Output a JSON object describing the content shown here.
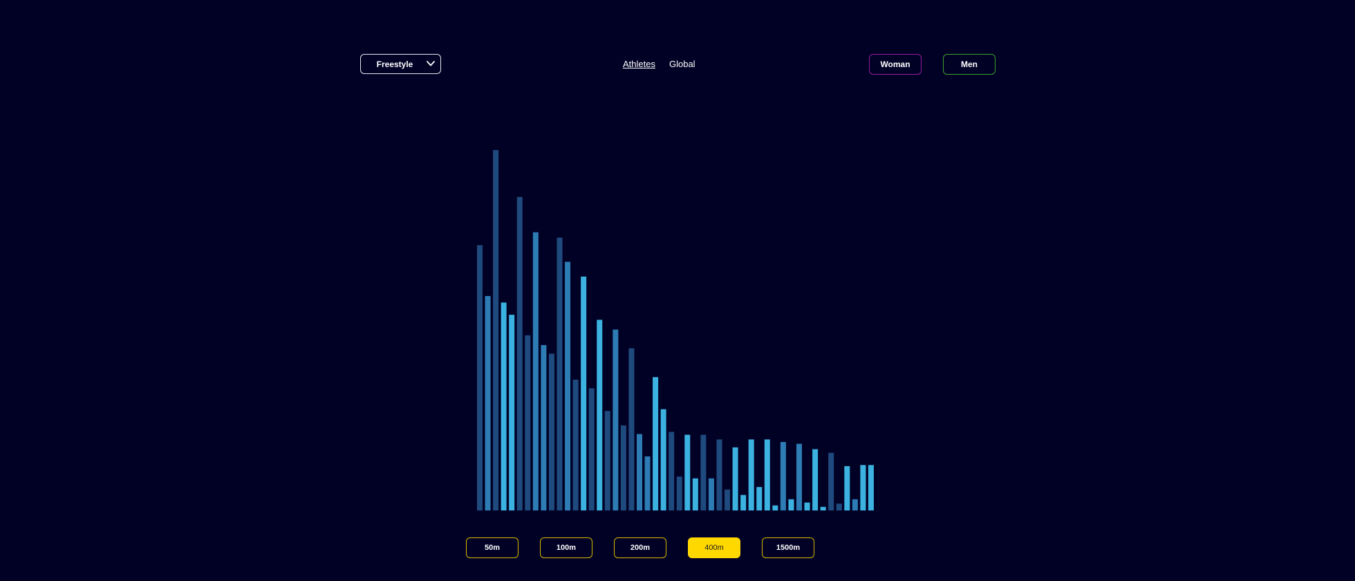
{
  "style_select": {
    "value": "Freestyle"
  },
  "view_tabs": [
    {
      "label": "Athletes",
      "active": true
    },
    {
      "label": "Global",
      "active": false
    }
  ],
  "gender_buttons": [
    {
      "label": "Woman",
      "color": "#9a1aa0"
    },
    {
      "label": "Men",
      "color": "#3fa02a"
    }
  ],
  "distances": [
    {
      "label": "50m",
      "selected": false
    },
    {
      "label": "100m",
      "selected": false
    },
    {
      "label": "200m",
      "selected": false
    },
    {
      "label": "400m",
      "selected": true
    },
    {
      "label": "1500m",
      "selected": false
    }
  ],
  "colors": {
    "background": "#010126",
    "selected_accent": "#ffd800",
    "bar_dark": "#1f4a7e",
    "bar_mid": "#2d7cb4",
    "bar_light": "#3bb2e0"
  },
  "chart_data": {
    "type": "bar",
    "title": "",
    "xlabel": "",
    "ylabel": "",
    "ylim": [
      0,
      100
    ],
    "shade_levels": [
      "dark",
      "mid",
      "light"
    ],
    "values": [
      73.6,
      59.5,
      100,
      57.7,
      54.3,
      87.0,
      48.6,
      77.2,
      45.9,
      43.5,
      75.7,
      69.0,
      36.3,
      64.9,
      33.9,
      52.9,
      27.6,
      50.2,
      23.6,
      45.0,
      21.2,
      15.0,
      37.0,
      28.1,
      21.8,
      9.4,
      21.0,
      8.9,
      21.0,
      8.9,
      19.7,
      5.8,
      17.5,
      4.3,
      19.7,
      6.5,
      19.7,
      1.4,
      19.0,
      3.1,
      18.5,
      2.2,
      17.0,
      1.0,
      16.0,
      1.9,
      12.3,
      3.1,
      12.6,
      12.6
    ],
    "shades": [
      0,
      1,
      0,
      2,
      2,
      0,
      0,
      1,
      1,
      0,
      0,
      1,
      0,
      2,
      0,
      2,
      0,
      1,
      0,
      0,
      1,
      1,
      2,
      2,
      0,
      0,
      2,
      2,
      0,
      1,
      0,
      0,
      2,
      2,
      2,
      2,
      2,
      2,
      1,
      2,
      1,
      2,
      2,
      2,
      0,
      0,
      2,
      1,
      2,
      2
    ]
  }
}
